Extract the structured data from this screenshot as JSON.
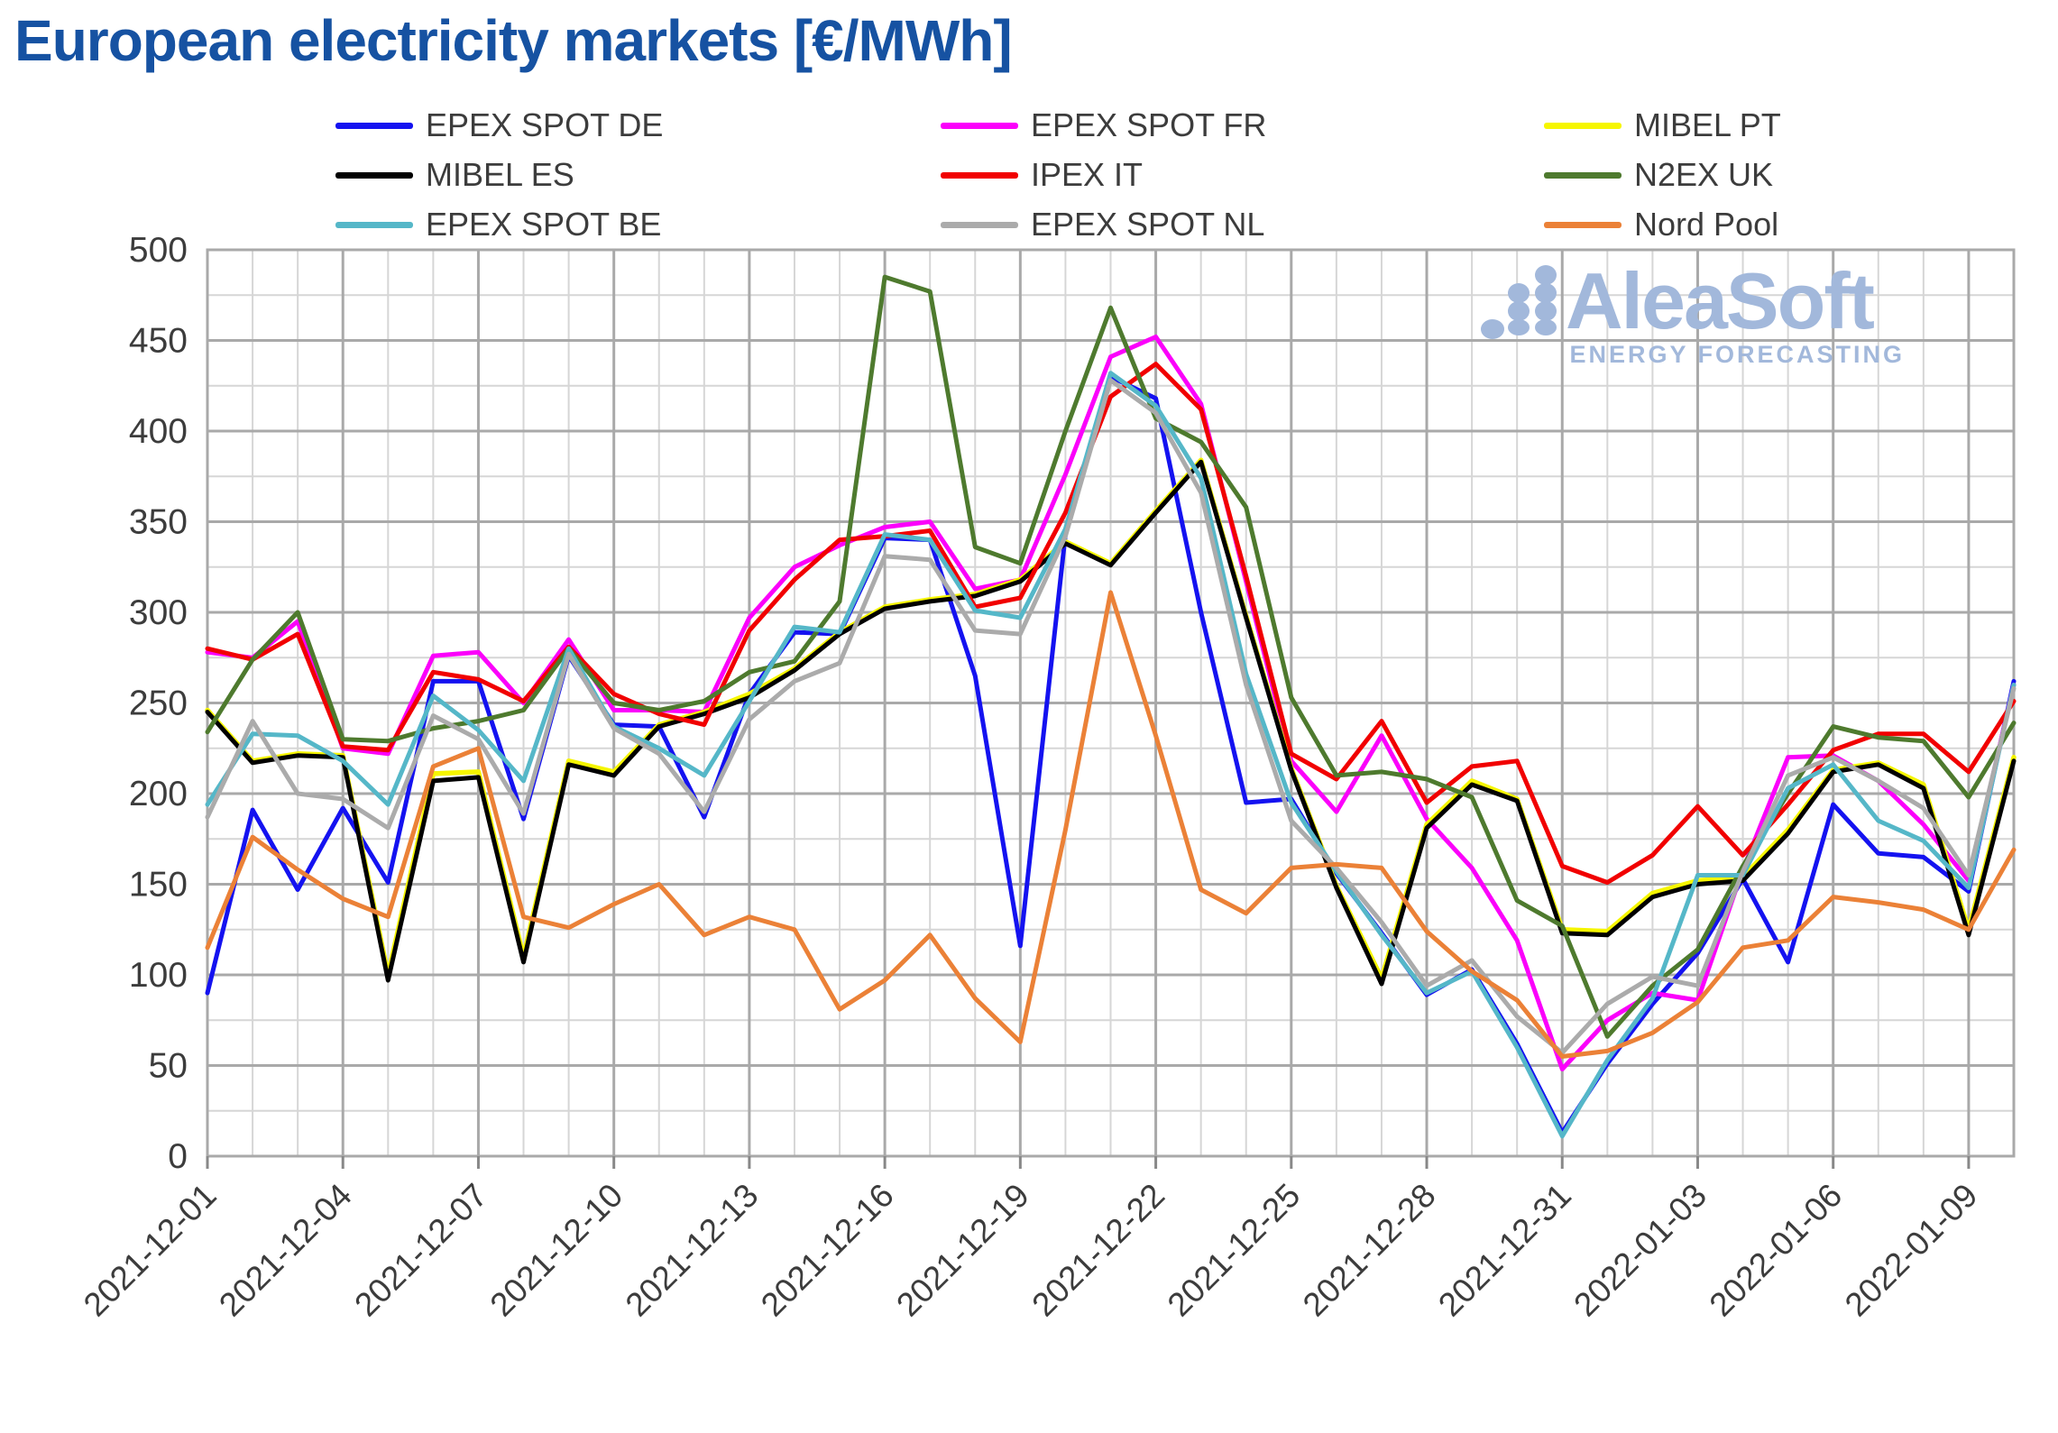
{
  "title": "European electricity markets [€/MWh]",
  "logo": {
    "name": "AleaSoft",
    "subtitle": "ENERGY FORECASTING",
    "color": "#a2b8db"
  },
  "colors": {
    "title": "#1652a2",
    "tick_text": "#3c3c3c",
    "grid_minor": "#d6d6d6",
    "grid_major": "#a9a9a9",
    "plot_border": "#a9a9a9",
    "background": "#ffffff"
  },
  "legend_columns": [
    [
      "DE",
      "ES",
      "BE"
    ],
    [
      "FR",
      "IT",
      "NL"
    ],
    [
      "PT",
      "UK",
      "NP"
    ]
  ],
  "chart_data": {
    "type": "line",
    "title": "European electricity markets [€/MWh]",
    "xlabel": "",
    "ylabel": "",
    "ylim": [
      0,
      500
    ],
    "y_major_step": 50,
    "y_minor_step": 25,
    "x_minor_step_days": 1,
    "x_major_step_days": 3,
    "grid": true,
    "legend_position": "top",
    "x": [
      "2021-12-01",
      "2021-12-02",
      "2021-12-03",
      "2021-12-04",
      "2021-12-05",
      "2021-12-06",
      "2021-12-07",
      "2021-12-08",
      "2021-12-09",
      "2021-12-10",
      "2021-12-11",
      "2021-12-12",
      "2021-12-13",
      "2021-12-14",
      "2021-12-15",
      "2021-12-16",
      "2021-12-17",
      "2021-12-18",
      "2021-12-19",
      "2021-12-20",
      "2021-12-21",
      "2021-12-22",
      "2021-12-23",
      "2021-12-24",
      "2021-12-25",
      "2021-12-26",
      "2021-12-27",
      "2021-12-28",
      "2021-12-29",
      "2021-12-30",
      "2021-12-31",
      "2022-01-01",
      "2022-01-02",
      "2022-01-03",
      "2022-01-04",
      "2022-01-05",
      "2022-01-06",
      "2022-01-07",
      "2022-01-08",
      "2022-01-09",
      "2022-01-10"
    ],
    "x_tick_labels": [
      "2021-12-01",
      "2021-12-04",
      "2021-12-07",
      "2021-12-10",
      "2021-12-13",
      "2021-12-16",
      "2021-12-19",
      "2021-12-22",
      "2021-12-25",
      "2021-12-28",
      "2021-12-31",
      "2022-01-03",
      "2022-01-06",
      "2022-01-09"
    ],
    "y_tick_labels": [
      "0",
      "50",
      "100",
      "150",
      "200",
      "250",
      "300",
      "350",
      "400",
      "450",
      "500"
    ],
    "series": [
      {
        "id": "DE",
        "name": "EPEX SPOT DE",
        "color": "#1412f0",
        "values": [
          90,
          191,
          147,
          192,
          151,
          262,
          262,
          186,
          276,
          238,
          237,
          187,
          255,
          289,
          288,
          341,
          340,
          265,
          116,
          343,
          430,
          418,
          300,
          195,
          197,
          156,
          123,
          89,
          103,
          62,
          13,
          51,
          84,
          112,
          153,
          107,
          194,
          167,
          165,
          146,
          262
        ]
      },
      {
        "id": "FR",
        "name": "EPEX SPOT FR",
        "color": "#fb00fb",
        "values": [
          278,
          275,
          295,
          225,
          222,
          276,
          278,
          250,
          285,
          246,
          246,
          245,
          297,
          325,
          337,
          347,
          350,
          313,
          318,
          376,
          441,
          452,
          415,
          317,
          218,
          190,
          232,
          186,
          159,
          119,
          48,
          75,
          90,
          86,
          158,
          220,
          221,
          207,
          183,
          152,
          260
        ]
      },
      {
        "id": "PT",
        "name": "MIBEL PT",
        "color": "#f6f600",
        "values": [
          246,
          218,
          222,
          221,
          100,
          211,
          212,
          110,
          218,
          212,
          238,
          245,
          255,
          269,
          289,
          303,
          307,
          310,
          318,
          339,
          327,
          356,
          384,
          298,
          214,
          149,
          98,
          183,
          207,
          197,
          125,
          124,
          145,
          152,
          154,
          180,
          213,
          217,
          205,
          125,
          220
        ]
      },
      {
        "id": "ES",
        "name": "MIBEL ES",
        "color": "#000000",
        "values": [
          245,
          217,
          221,
          220,
          97,
          207,
          209,
          107,
          216,
          210,
          237,
          244,
          253,
          268,
          288,
          302,
          306,
          309,
          317,
          338,
          326,
          355,
          383,
          297,
          213,
          148,
          95,
          181,
          205,
          196,
          123,
          122,
          143,
          150,
          152,
          178,
          212,
          216,
          203,
          122,
          218
        ]
      },
      {
        "id": "IT",
        "name": "IPEX IT",
        "color": "#f10000",
        "values": [
          280,
          274,
          288,
          226,
          224,
          267,
          263,
          251,
          281,
          255,
          244,
          238,
          290,
          318,
          340,
          342,
          345,
          303,
          308,
          355,
          419,
          437,
          412,
          320,
          222,
          208,
          240,
          195,
          215,
          218,
          160,
          151,
          166,
          193,
          166,
          194,
          224,
          233,
          233,
          212,
          251
        ]
      },
      {
        "id": "UK",
        "name": "N2EX UK",
        "color": "#4e7a2e",
        "values": [
          234,
          274,
          300,
          230,
          229,
          236,
          240,
          246,
          280,
          250,
          246,
          251,
          267,
          273,
          306,
          485,
          477,
          336,
          327,
          400,
          468,
          407,
          394,
          358,
          253,
          210,
          212,
          208,
          198,
          141,
          127,
          66,
          94,
          114,
          160,
          200,
          237,
          231,
          229,
          198,
          239
        ]
      },
      {
        "id": "BE",
        "name": "EPEX SPOT BE",
        "color": "#55b7c8",
        "values": [
          194,
          233,
          232,
          218,
          194,
          254,
          235,
          207,
          280,
          237,
          225,
          210,
          251,
          292,
          289,
          343,
          340,
          301,
          297,
          346,
          432,
          414,
          374,
          266,
          195,
          157,
          122,
          90,
          102,
          60,
          11,
          53,
          87,
          155,
          155,
          203,
          216,
          185,
          174,
          148,
          260
        ]
      },
      {
        "id": "NL",
        "name": "EPEX SPOT NL",
        "color": "#ababab",
        "values": [
          187,
          240,
          200,
          197,
          181,
          243,
          230,
          189,
          277,
          236,
          222,
          190,
          241,
          262,
          272,
          331,
          329,
          290,
          288,
          342,
          428,
          410,
          366,
          260,
          185,
          159,
          129,
          94,
          108,
          77,
          57,
          84,
          99,
          94,
          157,
          210,
          220,
          207,
          192,
          155,
          258
        ]
      },
      {
        "id": "NP",
        "name": "Nord Pool",
        "color": "#eb8137",
        "values": [
          115,
          176,
          158,
          142,
          132,
          215,
          225,
          132,
          126,
          139,
          150,
          122,
          132,
          125,
          81,
          97,
          122,
          87,
          63,
          180,
          311,
          232,
          147,
          134,
          159,
          161,
          159,
          124,
          102,
          86,
          55,
          58,
          68,
          85,
          115,
          119,
          143,
          140,
          136,
          125,
          169
        ]
      }
    ]
  }
}
